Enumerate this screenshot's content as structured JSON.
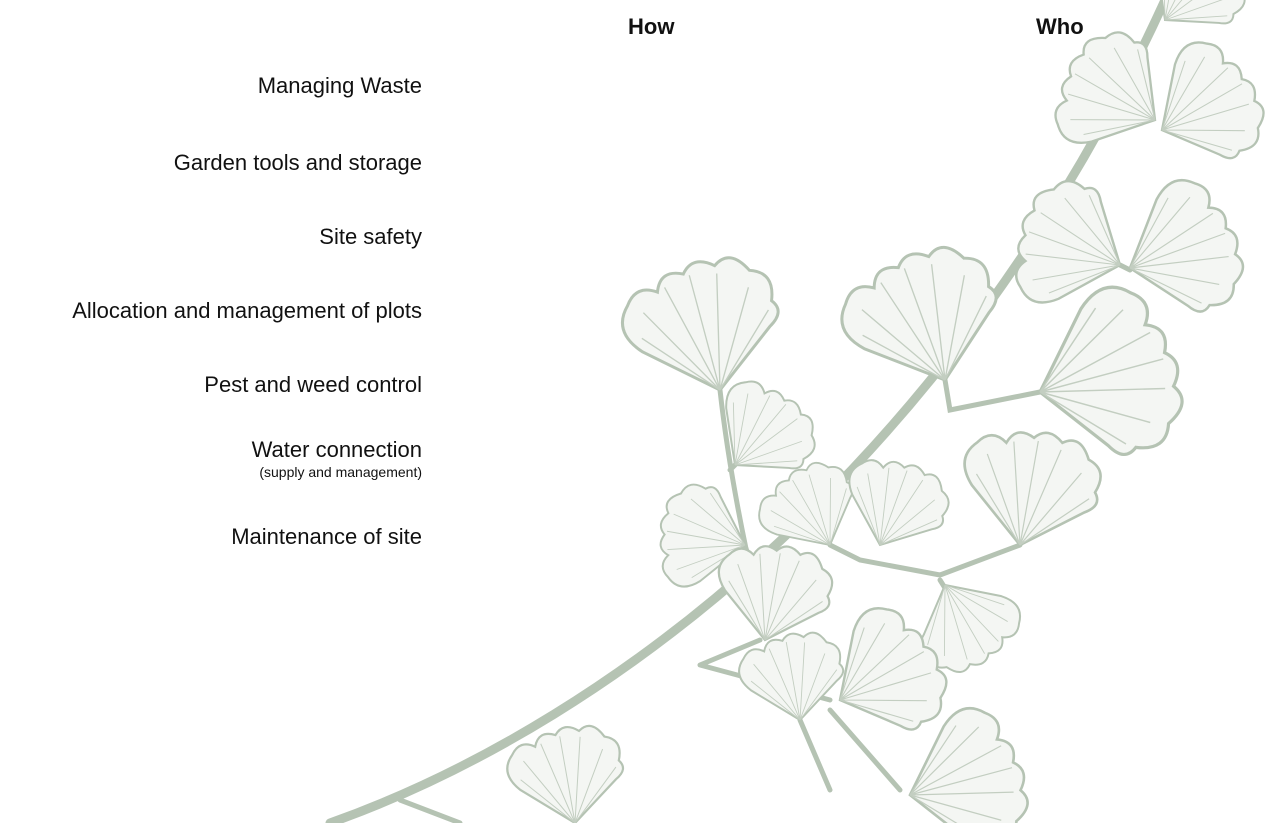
{
  "header": {
    "how": "How",
    "who": "Who"
  },
  "rows": [
    {
      "label": "Managing Waste"
    },
    {
      "label": "Garden tools and storage"
    },
    {
      "label": "Site safety"
    },
    {
      "label": "Allocation and management of plots"
    },
    {
      "label": "Pest and weed control"
    },
    {
      "label": "Water connection",
      "note": "(supply and management)"
    },
    {
      "label": "Maintenance of site"
    }
  ]
}
